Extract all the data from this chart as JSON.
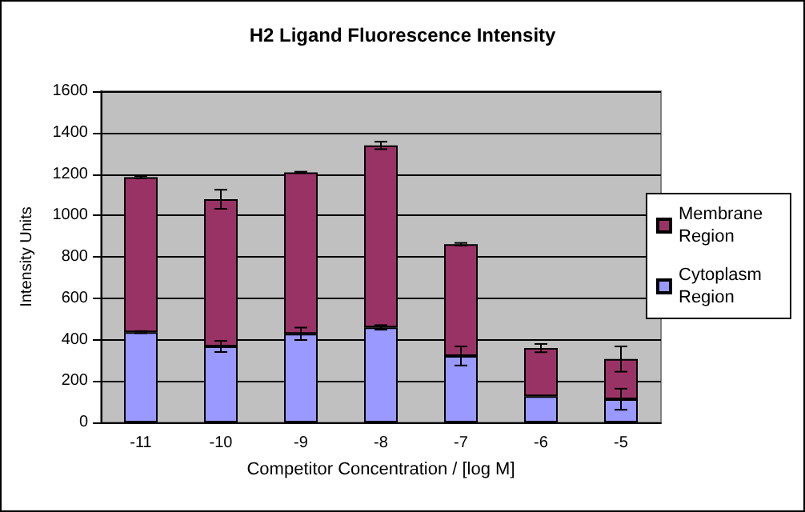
{
  "chart_data": {
    "type": "bar",
    "title": "H2 Ligand Fluorescence Intensity",
    "xlabel": "Competitor Concentration / [log M]",
    "ylabel": "Intensity Units",
    "categories": [
      "-11",
      "-10",
      "-9",
      "-8",
      "-7",
      "-6",
      "-5"
    ],
    "series": [
      {
        "name": "Cytoplasm Region",
        "color": "#9999ff",
        "values": [
          436,
          367,
          428,
          459,
          321,
          127,
          112
        ],
        "errors": [
          5,
          27,
          30,
          11,
          46,
          null,
          51
        ]
      },
      {
        "name": "Membrane Region",
        "color": "#993366",
        "values": [
          749,
          711,
          780,
          879,
          540,
          232,
          194
        ],
        "errors": [
          5,
          46,
          3,
          18,
          6,
          20,
          61
        ]
      }
    ],
    "stacked": true,
    "ylim": [
      0,
      1600
    ],
    "yticks": [
      0,
      200,
      400,
      600,
      800,
      1000,
      1200,
      1400,
      1600
    ],
    "grid": "y",
    "legend": "right"
  }
}
